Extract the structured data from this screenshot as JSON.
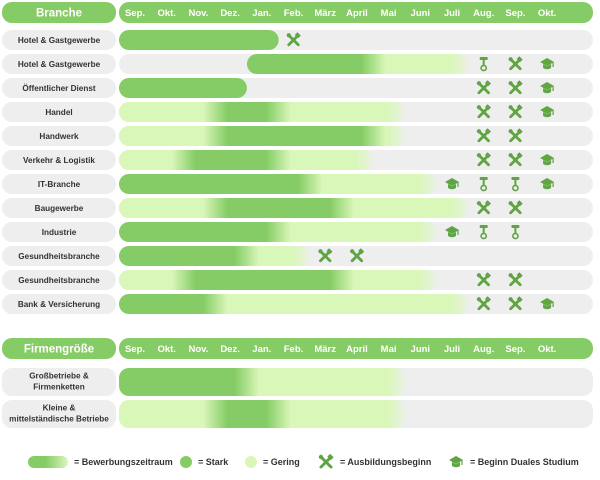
{
  "colors": {
    "strong": "#86cc66",
    "weak": "#d9f7b8",
    "row_bg": "#eeeeee",
    "header_bg": "#86cc66",
    "icon": "#5fa543"
  },
  "chart_data": {
    "type": "gantt",
    "months": [
      "Sep.",
      "Okt.",
      "Nov.",
      "Dez.",
      "Jan.",
      "Feb.",
      "März",
      "April",
      "Mai",
      "Juni",
      "Juli",
      "Aug.",
      "Sep.",
      "Okt."
    ],
    "sections": [
      {
        "header": "Branche",
        "rows": [
          {
            "label": "Hotel & Gastgewerbe",
            "strong": [
              0,
              5
            ],
            "weak": [
              5,
              5
            ],
            "icons": [
              {
                "type": "tools",
                "month": 5
              }
            ]
          },
          {
            "label": "Hotel & Gastgewerbe",
            "strong": [
              4,
              8
            ],
            "weak": [
              8,
              11
            ],
            "icons": [
              {
                "type": "tools-small",
                "month": 11
              },
              {
                "type": "tools",
                "month": 12
              },
              {
                "type": "cap",
                "month": 13
              }
            ]
          },
          {
            "label": "Öffentlicher Dienst",
            "strong": [
              0,
              4
            ],
            "weak": [
              4,
              4
            ],
            "icons": [
              {
                "type": "tools",
                "month": 11
              },
              {
                "type": "tools",
                "month": 12
              },
              {
                "type": "cap",
                "month": 13
              }
            ]
          },
          {
            "label": "Handel",
            "strong": [
              3,
              5
            ],
            "weak": [
              0,
              9
            ],
            "icons": [
              {
                "type": "tools",
                "month": 11
              },
              {
                "type": "tools",
                "month": 12
              },
              {
                "type": "cap",
                "month": 13
              }
            ]
          },
          {
            "label": "Handwerk",
            "strong": [
              3,
              8
            ],
            "weak": [
              0,
              9
            ],
            "icons": [
              {
                "type": "tools",
                "month": 11
              },
              {
                "type": "tools",
                "month": 12
              }
            ]
          },
          {
            "label": "Verkehr & Logistik",
            "strong": [
              2,
              5
            ],
            "weak": [
              0,
              8
            ],
            "icons": [
              {
                "type": "tools",
                "month": 11
              },
              {
                "type": "tools",
                "month": 12
              },
              {
                "type": "cap",
                "month": 13
              }
            ]
          },
          {
            "label": "IT-Branche",
            "strong": [
              0,
              6
            ],
            "weak": [
              6,
              10
            ],
            "icons": [
              {
                "type": "cap",
                "month": 10
              },
              {
                "type": "tools-small",
                "month": 11
              },
              {
                "type": "tools-small",
                "month": 12
              },
              {
                "type": "cap",
                "month": 13
              }
            ]
          },
          {
            "label": "Baugewerbe",
            "strong": [
              3,
              7
            ],
            "weak": [
              0,
              11
            ],
            "icons": [
              {
                "type": "tools",
                "month": 11
              },
              {
                "type": "tools",
                "month": 12
              }
            ]
          },
          {
            "label": "Industrie",
            "strong": [
              0,
              5
            ],
            "weak": [
              5,
              10
            ],
            "icons": [
              {
                "type": "cap",
                "month": 10
              },
              {
                "type": "tools-small",
                "month": 11
              },
              {
                "type": "tools-small",
                "month": 12
              }
            ]
          },
          {
            "label": "Gesundheitsbranche",
            "strong": [
              0,
              4
            ],
            "weak": [
              4,
              6
            ],
            "icons": [
              {
                "type": "tools",
                "month": 6
              },
              {
                "type": "tools",
                "month": 7
              }
            ]
          },
          {
            "label": "Gesundheitsbranche",
            "strong": [
              2,
              7
            ],
            "weak": [
              0,
              10
            ],
            "icons": [
              {
                "type": "tools",
                "month": 11
              },
              {
                "type": "tools",
                "month": 12
              }
            ]
          },
          {
            "label": "Bank & Versicherung",
            "strong": [
              0,
              3
            ],
            "weak": [
              3,
              11
            ],
            "icons": [
              {
                "type": "tools",
                "month": 11
              },
              {
                "type": "tools",
                "month": 12
              },
              {
                "type": "cap",
                "month": 13
              }
            ]
          }
        ]
      },
      {
        "header": "Firmengröße",
        "rows": [
          {
            "label": "Großbetriebe & Firmenketten",
            "strong": [
              0,
              4
            ],
            "weak": [
              4,
              9
            ],
            "icons": []
          },
          {
            "label": "Kleine & mittelständische Betriebe",
            "strong": [
              3,
              5
            ],
            "weak": [
              0,
              9
            ],
            "icons": []
          }
        ]
      }
    ],
    "legend": {
      "period": "= Bewerbungszeitraum",
      "strong": "= Stark",
      "weak": "= Gering",
      "start": "= Ausbildungsbeginn",
      "dual": "= Beginn Duales Studium"
    }
  }
}
